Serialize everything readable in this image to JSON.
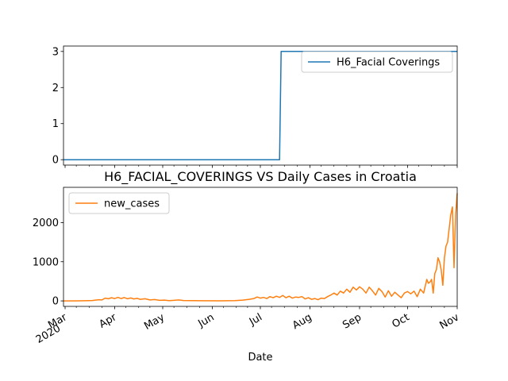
{
  "chart_data": [
    {
      "type": "line",
      "title": "",
      "xlabel": "",
      "ylabel": "",
      "ylim": [
        -0.15,
        3.15
      ],
      "yticks": [
        0,
        1,
        2,
        3
      ],
      "xlim": [
        "2020-02-29",
        "2020-11-01"
      ],
      "legend": "top-right",
      "grid": false,
      "series": [
        {
          "name": "H6_Facial Coverings",
          "color": "#1f77b4",
          "points": [
            [
              "2020-02-29",
              0
            ],
            [
              "2020-07-13",
              0
            ],
            [
              "2020-07-14",
              3
            ],
            [
              "2020-11-01",
              3
            ]
          ]
        }
      ]
    },
    {
      "type": "line",
      "title": "H6_FACIAL_COVERINGS VS Daily Cases in Croatia",
      "xlabel": "Date",
      "ylabel": "",
      "ylim": [
        -140,
        2900
      ],
      "yticks": [
        0,
        1000,
        2000
      ],
      "xlim": [
        "2020-02-29",
        "2020-11-01"
      ],
      "xticks": [
        {
          "date": "2020-03-01",
          "label": "Mar",
          "sublabel": "2020"
        },
        {
          "date": "2020-04-01",
          "label": "Apr"
        },
        {
          "date": "2020-05-01",
          "label": "May"
        },
        {
          "date": "2020-06-01",
          "label": "Jun"
        },
        {
          "date": "2020-07-01",
          "label": "Jul"
        },
        {
          "date": "2020-08-01",
          "label": "Aug"
        },
        {
          "date": "2020-09-01",
          "label": "Sep"
        },
        {
          "date": "2020-10-01",
          "label": "Oct"
        },
        {
          "date": "2020-11-01",
          "label": "Nov"
        }
      ],
      "legend": "top-left",
      "grid": false,
      "series": [
        {
          "name": "new_cases",
          "color": "#ff7f0e",
          "points": [
            [
              "2020-02-29",
              0
            ],
            [
              "2020-03-10",
              2
            ],
            [
              "2020-03-18",
              10
            ],
            [
              "2020-03-22",
              30
            ],
            [
              "2020-03-24",
              25
            ],
            [
              "2020-03-26",
              70
            ],
            [
              "2020-03-28",
              55
            ],
            [
              "2020-03-30",
              80
            ],
            [
              "2020-04-01",
              60
            ],
            [
              "2020-04-03",
              90
            ],
            [
              "2020-04-05",
              60
            ],
            [
              "2020-04-07",
              85
            ],
            [
              "2020-04-09",
              55
            ],
            [
              "2020-04-11",
              75
            ],
            [
              "2020-04-13",
              50
            ],
            [
              "2020-04-15",
              65
            ],
            [
              "2020-04-17",
              40
            ],
            [
              "2020-04-20",
              55
            ],
            [
              "2020-04-23",
              25
            ],
            [
              "2020-04-26",
              35
            ],
            [
              "2020-04-29",
              15
            ],
            [
              "2020-05-02",
              20
            ],
            [
              "2020-05-05",
              8
            ],
            [
              "2020-05-08",
              15
            ],
            [
              "2020-05-11",
              25
            ],
            [
              "2020-05-14",
              10
            ],
            [
              "2020-05-20",
              5
            ],
            [
              "2020-05-28",
              3
            ],
            [
              "2020-06-05",
              2
            ],
            [
              "2020-06-15",
              5
            ],
            [
              "2020-06-20",
              20
            ],
            [
              "2020-06-24",
              40
            ],
            [
              "2020-06-27",
              60
            ],
            [
              "2020-06-29",
              100
            ],
            [
              "2020-07-01",
              70
            ],
            [
              "2020-07-03",
              90
            ],
            [
              "2020-07-05",
              60
            ],
            [
              "2020-07-07",
              110
            ],
            [
              "2020-07-09",
              80
            ],
            [
              "2020-07-11",
              120
            ],
            [
              "2020-07-13",
              90
            ],
            [
              "2020-07-15",
              140
            ],
            [
              "2020-07-17",
              80
            ],
            [
              "2020-07-19",
              120
            ],
            [
              "2020-07-21",
              70
            ],
            [
              "2020-07-23",
              100
            ],
            [
              "2020-07-25",
              90
            ],
            [
              "2020-07-27",
              110
            ],
            [
              "2020-07-29",
              50
            ],
            [
              "2020-07-31",
              80
            ],
            [
              "2020-08-02",
              40
            ],
            [
              "2020-08-04",
              60
            ],
            [
              "2020-08-06",
              30
            ],
            [
              "2020-08-08",
              70
            ],
            [
              "2020-08-10",
              60
            ],
            [
              "2020-08-12",
              110
            ],
            [
              "2020-08-14",
              150
            ],
            [
              "2020-08-16",
              200
            ],
            [
              "2020-08-18",
              150
            ],
            [
              "2020-08-20",
              250
            ],
            [
              "2020-08-22",
              200
            ],
            [
              "2020-08-24",
              300
            ],
            [
              "2020-08-26",
              220
            ],
            [
              "2020-08-28",
              350
            ],
            [
              "2020-08-30",
              280
            ],
            [
              "2020-09-01",
              360
            ],
            [
              "2020-09-03",
              300
            ],
            [
              "2020-09-05",
              200
            ],
            [
              "2020-09-07",
              350
            ],
            [
              "2020-09-09",
              260
            ],
            [
              "2020-09-11",
              150
            ],
            [
              "2020-09-13",
              320
            ],
            [
              "2020-09-15",
              240
            ],
            [
              "2020-09-17",
              100
            ],
            [
              "2020-09-19",
              260
            ],
            [
              "2020-09-21",
              120
            ],
            [
              "2020-09-23",
              220
            ],
            [
              "2020-09-25",
              150
            ],
            [
              "2020-09-27",
              80
            ],
            [
              "2020-09-29",
              200
            ],
            [
              "2020-10-01",
              240
            ],
            [
              "2020-10-03",
              180
            ],
            [
              "2020-10-05",
              250
            ],
            [
              "2020-10-07",
              110
            ],
            [
              "2020-10-09",
              300
            ],
            [
              "2020-10-11",
              200
            ],
            [
              "2020-10-13",
              550
            ],
            [
              "2020-10-14",
              450
            ],
            [
              "2020-10-15",
              480
            ],
            [
              "2020-10-16",
              550
            ],
            [
              "2020-10-17",
              200
            ],
            [
              "2020-10-18",
              700
            ],
            [
              "2020-10-19",
              800
            ],
            [
              "2020-10-20",
              1100
            ],
            [
              "2020-10-21",
              1000
            ],
            [
              "2020-10-22",
              800
            ],
            [
              "2020-10-23",
              400
            ],
            [
              "2020-10-24",
              1100
            ],
            [
              "2020-10-25",
              1400
            ],
            [
              "2020-10-26",
              1500
            ],
            [
              "2020-10-27",
              1850
            ],
            [
              "2020-10-28",
              2200
            ],
            [
              "2020-10-29",
              2400
            ],
            [
              "2020-10-30",
              850
            ],
            [
              "2020-10-31",
              2200
            ],
            [
              "2020-11-01",
              2750
            ]
          ]
        }
      ]
    }
  ]
}
